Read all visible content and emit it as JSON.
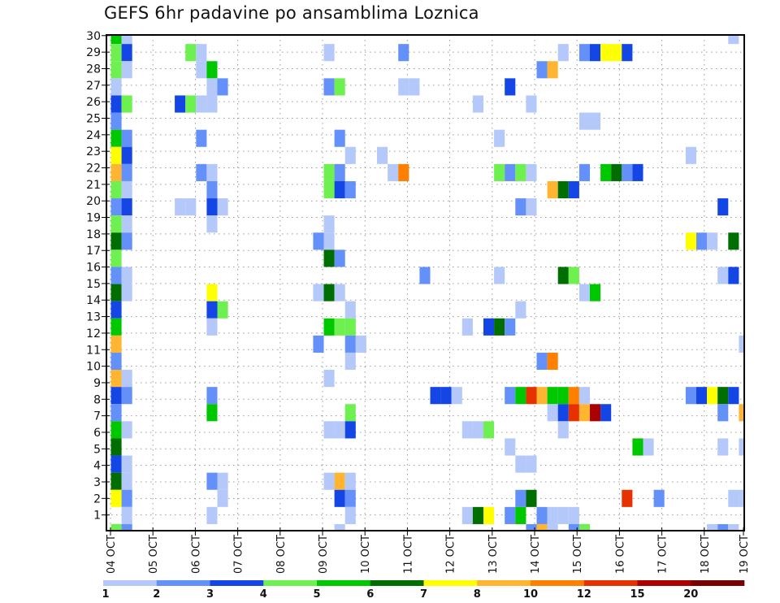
{
  "chart_data": {
    "type": "heatmap",
    "title": "GEFS 6hr padavine po ansamblima Loznica",
    "xlabel": "",
    "ylabel": "",
    "x_unit": "6-hour step from 04 OCT 00Z",
    "x_steps": 60,
    "x_tick_labels": [
      "04 OCT",
      "05 OCT",
      "06 OCT",
      "07 OCT",
      "08 OCT",
      "09 OCT",
      "10 OCT",
      "11 OCT",
      "12 OCT",
      "13 OCT",
      "14 OCT",
      "15 OCT",
      "16 OCT",
      "17 OCT",
      "18 OCT",
      "19 OCT"
    ],
    "y_tick_labels": [
      "1",
      "2",
      "3",
      "4",
      "5",
      "6",
      "7",
      "8",
      "9",
      "10",
      "11",
      "12",
      "13",
      "14",
      "15",
      "16",
      "17",
      "18",
      "19",
      "20",
      "21",
      "22",
      "23",
      "24",
      "25",
      "26",
      "27",
      "28",
      "29",
      "30"
    ],
    "ylim": [
      0,
      30
    ],
    "grid": true,
    "legend": {
      "placement": "bottom",
      "levels": [
        1,
        2,
        3,
        4,
        5,
        6,
        7,
        8,
        10,
        12,
        15,
        20
      ],
      "labels": [
        "1",
        "2",
        "3",
        "4",
        "5",
        "6",
        "7",
        "8",
        "10",
        "12",
        "15",
        "20"
      ],
      "colors": [
        "#b4c8fa",
        "#6490fa",
        "#1446e6",
        "#6ef050",
        "#00c800",
        "#006e00",
        "#ffff00",
        "#ffb432",
        "#ff8000",
        "#e63200",
        "#aa0000",
        "#780000"
      ]
    },
    "cell_format": "[step, member, lower bound of precipitation bin in mm]",
    "rows": [
      {
        "member": 30,
        "cells": [
          [
            0,
            5
          ],
          [
            1,
            1
          ],
          [
            58,
            1
          ]
        ]
      },
      {
        "member": 29,
        "cells": [
          [
            0,
            4
          ],
          [
            1,
            3
          ],
          [
            7,
            4
          ],
          [
            8,
            1
          ],
          [
            20,
            1
          ],
          [
            27,
            2
          ],
          [
            42,
            1
          ],
          [
            44,
            2
          ],
          [
            45,
            3
          ],
          [
            46,
            7
          ],
          [
            47,
            7
          ],
          [
            48,
            3
          ]
        ]
      },
      {
        "member": 28,
        "cells": [
          [
            0,
            4
          ],
          [
            1,
            1
          ],
          [
            8,
            1
          ],
          [
            9,
            5
          ],
          [
            40,
            2
          ],
          [
            41,
            8
          ]
        ]
      },
      {
        "member": 27,
        "cells": [
          [
            0,
            1
          ],
          [
            9,
            1
          ],
          [
            10,
            2
          ],
          [
            20,
            2
          ],
          [
            21,
            4
          ],
          [
            27,
            1
          ],
          [
            28,
            1
          ],
          [
            37,
            3
          ]
        ]
      },
      {
        "member": 26,
        "cells": [
          [
            0,
            3
          ],
          [
            1,
            4
          ],
          [
            6,
            3
          ],
          [
            7,
            4
          ],
          [
            8,
            1
          ],
          [
            9,
            1
          ],
          [
            34,
            1
          ],
          [
            39,
            1
          ]
        ]
      },
      {
        "member": 25,
        "cells": [
          [
            0,
            2
          ],
          [
            44,
            1
          ],
          [
            45,
            1
          ]
        ]
      },
      {
        "member": 24,
        "cells": [
          [
            0,
            5
          ],
          [
            1,
            2
          ],
          [
            8,
            2
          ],
          [
            21,
            2
          ],
          [
            36,
            1
          ]
        ]
      },
      {
        "member": 23,
        "cells": [
          [
            0,
            7
          ],
          [
            1,
            3
          ],
          [
            22,
            1
          ],
          [
            25,
            1
          ],
          [
            54,
            1
          ]
        ]
      },
      {
        "member": 22,
        "cells": [
          [
            0,
            8
          ],
          [
            1,
            2
          ],
          [
            8,
            2
          ],
          [
            9,
            1
          ],
          [
            20,
            4
          ],
          [
            21,
            2
          ],
          [
            26,
            1
          ],
          [
            27,
            10
          ],
          [
            36,
            4
          ],
          [
            37,
            2
          ],
          [
            38,
            4
          ],
          [
            39,
            1
          ],
          [
            44,
            2
          ],
          [
            46,
            5
          ],
          [
            47,
            6
          ],
          [
            48,
            2
          ],
          [
            49,
            3
          ]
        ]
      },
      {
        "member": 21,
        "cells": [
          [
            0,
            4
          ],
          [
            1,
            1
          ],
          [
            9,
            2
          ],
          [
            20,
            4
          ],
          [
            21,
            3
          ],
          [
            22,
            2
          ],
          [
            41,
            8
          ],
          [
            42,
            6
          ],
          [
            43,
            3
          ]
        ]
      },
      {
        "member": 20,
        "cells": [
          [
            0,
            2
          ],
          [
            1,
            3
          ],
          [
            6,
            1
          ],
          [
            7,
            1
          ],
          [
            9,
            3
          ],
          [
            10,
            1
          ],
          [
            38,
            2
          ],
          [
            39,
            1
          ],
          [
            57,
            3
          ]
        ]
      },
      {
        "member": 19,
        "cells": [
          [
            0,
            4
          ],
          [
            1,
            1
          ],
          [
            9,
            1
          ],
          [
            20,
            1
          ]
        ]
      },
      {
        "member": 18,
        "cells": [
          [
            0,
            6
          ],
          [
            1,
            2
          ],
          [
            19,
            2
          ],
          [
            20,
            1
          ],
          [
            54,
            7
          ],
          [
            55,
            2
          ],
          [
            56,
            1
          ],
          [
            58,
            6
          ]
        ]
      },
      {
        "member": 17,
        "cells": [
          [
            0,
            4
          ],
          [
            20,
            6
          ],
          [
            21,
            2
          ]
        ]
      },
      {
        "member": 16,
        "cells": [
          [
            0,
            2
          ],
          [
            1,
            1
          ],
          [
            29,
            2
          ],
          [
            36,
            1
          ],
          [
            42,
            6
          ],
          [
            43,
            4
          ],
          [
            57,
            1
          ],
          [
            58,
            3
          ]
        ]
      },
      {
        "member": 15,
        "cells": [
          [
            0,
            6
          ],
          [
            1,
            1
          ],
          [
            9,
            7
          ],
          [
            19,
            1
          ],
          [
            20,
            6
          ],
          [
            21,
            1
          ],
          [
            44,
            1
          ],
          [
            45,
            5
          ]
        ]
      },
      {
        "member": 14,
        "cells": [
          [
            0,
            3
          ],
          [
            9,
            3
          ],
          [
            10,
            4
          ],
          [
            22,
            1
          ],
          [
            38,
            1
          ]
        ]
      },
      {
        "member": 13,
        "cells": [
          [
            0,
            5
          ],
          [
            9,
            1
          ],
          [
            20,
            5
          ],
          [
            21,
            4
          ],
          [
            22,
            4
          ],
          [
            33,
            1
          ],
          [
            35,
            3
          ],
          [
            36,
            6
          ],
          [
            37,
            2
          ]
        ]
      },
      {
        "member": 12,
        "cells": [
          [
            0,
            8
          ],
          [
            19,
            2
          ],
          [
            22,
            2
          ],
          [
            23,
            1
          ],
          [
            59,
            1
          ]
        ]
      },
      {
        "member": 11,
        "cells": [
          [
            0,
            2
          ],
          [
            22,
            1
          ],
          [
            40,
            2
          ],
          [
            41,
            10
          ]
        ]
      },
      {
        "member": 10,
        "cells": [
          [
            0,
            8
          ],
          [
            1,
            1
          ],
          [
            20,
            1
          ]
        ]
      },
      {
        "member": 9,
        "cells": [
          [
            0,
            3
          ],
          [
            1,
            2
          ],
          [
            9,
            2
          ],
          [
            30,
            3
          ],
          [
            31,
            3
          ],
          [
            32,
            1
          ],
          [
            37,
            2
          ],
          [
            38,
            5
          ],
          [
            39,
            12
          ],
          [
            40,
            8
          ],
          [
            41,
            5
          ],
          [
            42,
            5
          ],
          [
            43,
            10
          ],
          [
            44,
            1
          ],
          [
            54,
            2
          ],
          [
            55,
            3
          ],
          [
            56,
            7
          ],
          [
            57,
            6
          ],
          [
            58,
            3
          ]
        ]
      },
      {
        "member": 8,
        "cells": [
          [
            0,
            2
          ],
          [
            9,
            5
          ],
          [
            22,
            4
          ],
          [
            41,
            1
          ],
          [
            42,
            3
          ],
          [
            43,
            12
          ],
          [
            44,
            8
          ],
          [
            45,
            15
          ],
          [
            46,
            3
          ],
          [
            57,
            2
          ],
          [
            59,
            8
          ]
        ]
      },
      {
        "member": 7,
        "cells": [
          [
            0,
            5
          ],
          [
            1,
            1
          ],
          [
            20,
            1
          ],
          [
            21,
            1
          ],
          [
            22,
            3
          ],
          [
            33,
            1
          ],
          [
            34,
            1
          ],
          [
            35,
            4
          ],
          [
            42,
            1
          ]
        ]
      },
      {
        "member": 6,
        "cells": [
          [
            0,
            6
          ],
          [
            37,
            1
          ],
          [
            49,
            5
          ],
          [
            50,
            1
          ],
          [
            57,
            1
          ],
          [
            59,
            1
          ]
        ]
      },
      {
        "member": 5,
        "cells": [
          [
            0,
            3
          ],
          [
            1,
            1
          ],
          [
            38,
            1
          ],
          [
            39,
            1
          ]
        ]
      },
      {
        "member": 4,
        "cells": [
          [
            0,
            6
          ],
          [
            1,
            1
          ],
          [
            9,
            2
          ],
          [
            10,
            1
          ],
          [
            20,
            1
          ],
          [
            21,
            8
          ],
          [
            22,
            1
          ]
        ]
      },
      {
        "member": 3,
        "cells": [
          [
            0,
            7
          ],
          [
            1,
            2
          ],
          [
            10,
            1
          ],
          [
            21,
            3
          ],
          [
            22,
            2
          ],
          [
            38,
            2
          ],
          [
            39,
            6
          ],
          [
            48,
            12
          ],
          [
            51,
            2
          ],
          [
            58,
            1
          ],
          [
            59,
            1
          ]
        ]
      },
      {
        "member": 2,
        "cells": [
          [
            1,
            1
          ],
          [
            9,
            1
          ],
          [
            22,
            1
          ],
          [
            33,
            1
          ],
          [
            34,
            6
          ],
          [
            35,
            7
          ],
          [
            37,
            2
          ],
          [
            38,
            5
          ],
          [
            40,
            2
          ],
          [
            41,
            1
          ],
          [
            42,
            1
          ],
          [
            43,
            1
          ]
        ]
      },
      {
        "member": 1,
        "cells": [
          [
            0,
            4
          ],
          [
            1,
            2
          ],
          [
            21,
            1
          ],
          [
            39,
            2
          ],
          [
            40,
            8
          ],
          [
            41,
            1
          ],
          [
            43,
            2
          ],
          [
            44,
            4
          ],
          [
            56,
            1
          ],
          [
            57,
            2
          ],
          [
            58,
            1
          ]
        ]
      }
    ]
  }
}
